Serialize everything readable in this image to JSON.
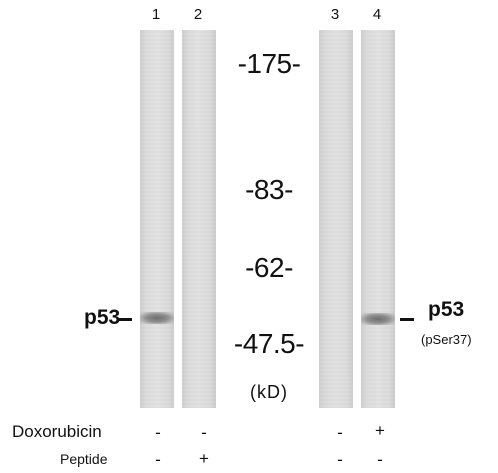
{
  "lanes": [
    {
      "number": "1",
      "band": true,
      "band_intensity": "strong"
    },
    {
      "number": "2",
      "band": false
    },
    {
      "number": "3",
      "band": false
    },
    {
      "number": "4",
      "band": true,
      "band_intensity": "strong"
    }
  ],
  "markers": [
    "-175-",
    "-83-",
    "-62-",
    "-47.5-"
  ],
  "unit": "(kD)",
  "left_label": "p53",
  "right_label": "p53",
  "right_sublabel": "(pSer37)",
  "treatments": [
    {
      "label": "Doxorubicin",
      "values": [
        "-",
        "-",
        "-",
        "+"
      ]
    },
    {
      "label": "Peptide",
      "values": [
        "-",
        "+",
        "-",
        "-"
      ]
    }
  ],
  "colors": {
    "background": "#ffffff",
    "lane": "#dedede",
    "band": "#7a7a7a",
    "text": "#111111"
  }
}
